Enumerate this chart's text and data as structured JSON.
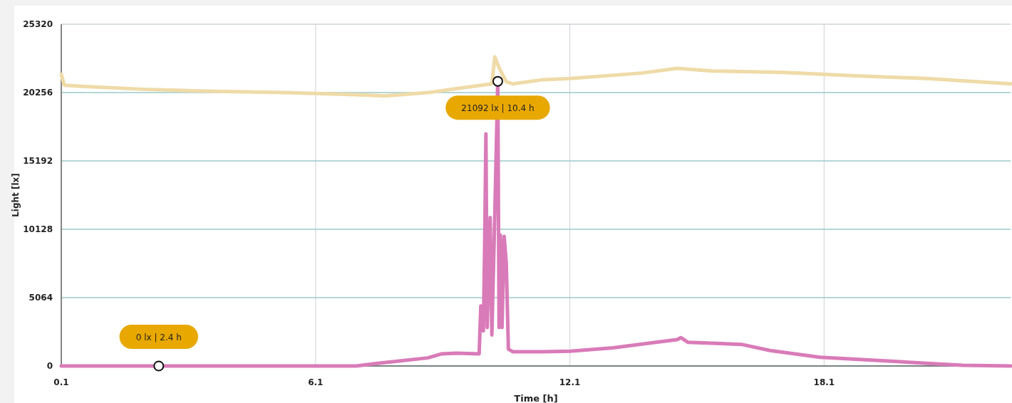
{
  "chart_data": {
    "type": "line",
    "xlabel": "Time [h]",
    "ylabel": "Light [lx]",
    "xlim": [
      0.1,
      22.5
    ],
    "xticks": [
      0.1,
      6.1,
      12.1,
      18.1
    ],
    "ylim": [
      0,
      25320
    ],
    "yticks": [
      0,
      5064,
      10128,
      15192,
      20256,
      25320
    ],
    "grid": true,
    "marker": "none",
    "line_style": "solid",
    "series": [
      {
        "color": "#efdba8",
        "x": [
          0.1,
          0.17,
          0.67,
          2.02,
          3.7,
          5.38,
          7.06,
          7.74,
          8.75,
          9.42,
          10.26,
          10.33,
          10.43,
          10.6,
          10.76,
          11.44,
          12.11,
          13.79,
          14.63,
          15.47,
          17.16,
          18.84,
          20.52,
          22.5
        ],
        "values": [
          21600,
          20800,
          20700,
          20500,
          20350,
          20250,
          20100,
          20000,
          20250,
          20550,
          20900,
          22900,
          22100,
          21050,
          20900,
          21200,
          21300,
          21700,
          22050,
          21850,
          21750,
          21500,
          21300,
          20900
        ]
      },
      {
        "color": "#d97bb8",
        "x": [
          0.1,
          2.4,
          7.06,
          7.57,
          8.75,
          9.08,
          9.42,
          9.96,
          10.0,
          10.06,
          10.09,
          10.12,
          10.15,
          10.22,
          10.26,
          10.33,
          10.4,
          10.43,
          10.46,
          10.5,
          10.55,
          10.6,
          10.65,
          10.76,
          11.44,
          12.11,
          13.12,
          14.13,
          14.63,
          14.72,
          14.89,
          16.15,
          16.82,
          18.0,
          19.68,
          20.52,
          21.36,
          22.5
        ],
        "values": [
          0,
          0,
          0,
          200,
          600,
          900,
          950,
          900,
          4450,
          2600,
          8900,
          17200,
          2850,
          11000,
          2300,
          11300,
          21092,
          2850,
          9700,
          2850,
          9600,
          7600,
          1250,
          1050,
          1050,
          1100,
          1350,
          1750,
          1950,
          2100,
          1750,
          1600,
          1150,
          650,
          350,
          200,
          50,
          0
        ]
      }
    ],
    "annotations": [
      {
        "text": "21092 lx | 10.4 h",
        "x": 10.4,
        "y": 21092
      },
      {
        "text": "0 lx | 2.4 h",
        "x": 2.4,
        "y": 0
      }
    ]
  }
}
